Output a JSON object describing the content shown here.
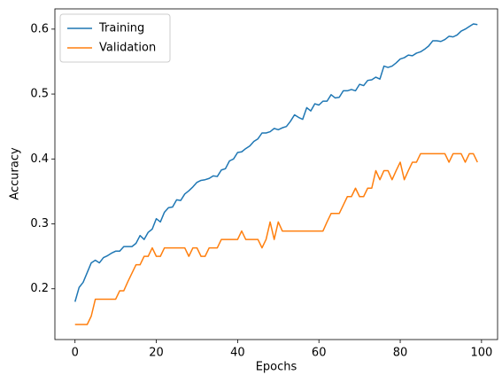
{
  "chart_data": {
    "type": "line",
    "x_label": "Epochs",
    "y_label": "Accuracy",
    "x": [
      0,
      1,
      2,
      3,
      4,
      5,
      6,
      7,
      8,
      9,
      10,
      11,
      12,
      13,
      14,
      15,
      16,
      17,
      18,
      19,
      20,
      21,
      22,
      23,
      24,
      25,
      26,
      27,
      28,
      29,
      30,
      31,
      32,
      33,
      34,
      35,
      36,
      37,
      38,
      39,
      40,
      41,
      42,
      43,
      44,
      45,
      46,
      47,
      48,
      49,
      50,
      51,
      52,
      53,
      54,
      55,
      56,
      57,
      58,
      59,
      60,
      61,
      62,
      63,
      64,
      65,
      66,
      67,
      68,
      69,
      70,
      71,
      72,
      73,
      74,
      75,
      76,
      77,
      78,
      79,
      80,
      81,
      82,
      83,
      84,
      85,
      86,
      87,
      88,
      89,
      90,
      91,
      92,
      93,
      94,
      95,
      96,
      97,
      98,
      99
    ],
    "series": [
      {
        "name": "Training",
        "color": "#1f77b4",
        "values": [
          0.18,
          0.202,
          0.21,
          0.225,
          0.24,
          0.244,
          0.24,
          0.248,
          0.251,
          0.255,
          0.258,
          0.258,
          0.265,
          0.265,
          0.265,
          0.27,
          0.282,
          0.276,
          0.287,
          0.292,
          0.308,
          0.303,
          0.318,
          0.325,
          0.326,
          0.337,
          0.336,
          0.346,
          0.351,
          0.357,
          0.364,
          0.367,
          0.368,
          0.37,
          0.374,
          0.373,
          0.383,
          0.385,
          0.397,
          0.4,
          0.41,
          0.411,
          0.416,
          0.42,
          0.427,
          0.431,
          0.44,
          0.44,
          0.442,
          0.447,
          0.445,
          0.448,
          0.45,
          0.458,
          0.468,
          0.464,
          0.461,
          0.479,
          0.474,
          0.485,
          0.483,
          0.489,
          0.489,
          0.499,
          0.494,
          0.495,
          0.505,
          0.505,
          0.507,
          0.505,
          0.515,
          0.513,
          0.521,
          0.522,
          0.526,
          0.523,
          0.543,
          0.541,
          0.543,
          0.548,
          0.554,
          0.556,
          0.56,
          0.559,
          0.563,
          0.565,
          0.569,
          0.574,
          0.582,
          0.582,
          0.581,
          0.584,
          0.589,
          0.588,
          0.591,
          0.597,
          0.6,
          0.604,
          0.608,
          0.607
        ]
      },
      {
        "name": "Validation",
        "color": "#ff7f0e",
        "values": [
          0.145,
          0.145,
          0.145,
          0.145,
          0.158,
          0.184,
          0.184,
          0.184,
          0.184,
          0.184,
          0.184,
          0.197,
          0.197,
          0.211,
          0.224,
          0.237,
          0.237,
          0.25,
          0.25,
          0.263,
          0.25,
          0.25,
          0.263,
          0.263,
          0.263,
          0.263,
          0.263,
          0.263,
          0.25,
          0.263,
          0.263,
          0.25,
          0.25,
          0.263,
          0.263,
          0.263,
          0.276,
          0.276,
          0.276,
          0.276,
          0.276,
          0.289,
          0.276,
          0.276,
          0.276,
          0.276,
          0.263,
          0.276,
          0.303,
          0.276,
          0.303,
          0.289,
          0.289,
          0.289,
          0.289,
          0.289,
          0.289,
          0.289,
          0.289,
          0.289,
          0.289,
          0.289,
          0.303,
          0.316,
          0.316,
          0.316,
          0.329,
          0.342,
          0.342,
          0.355,
          0.342,
          0.342,
          0.355,
          0.355,
          0.382,
          0.368,
          0.382,
          0.382,
          0.368,
          0.382,
          0.395,
          0.368,
          0.382,
          0.395,
          0.395,
          0.408,
          0.408,
          0.408,
          0.408,
          0.408,
          0.408,
          0.408,
          0.395,
          0.408,
          0.408,
          0.408,
          0.395,
          0.408,
          0.408,
          0.395
        ]
      }
    ],
    "xlim": [
      -4.95,
      103.95
    ],
    "ylim": [
      0.1218,
      0.6312
    ],
    "xticks": [
      0,
      20,
      40,
      60,
      80,
      100
    ],
    "yticks": [
      0.2,
      0.3,
      0.4,
      0.5,
      0.6
    ],
    "legend": "upper left"
  }
}
